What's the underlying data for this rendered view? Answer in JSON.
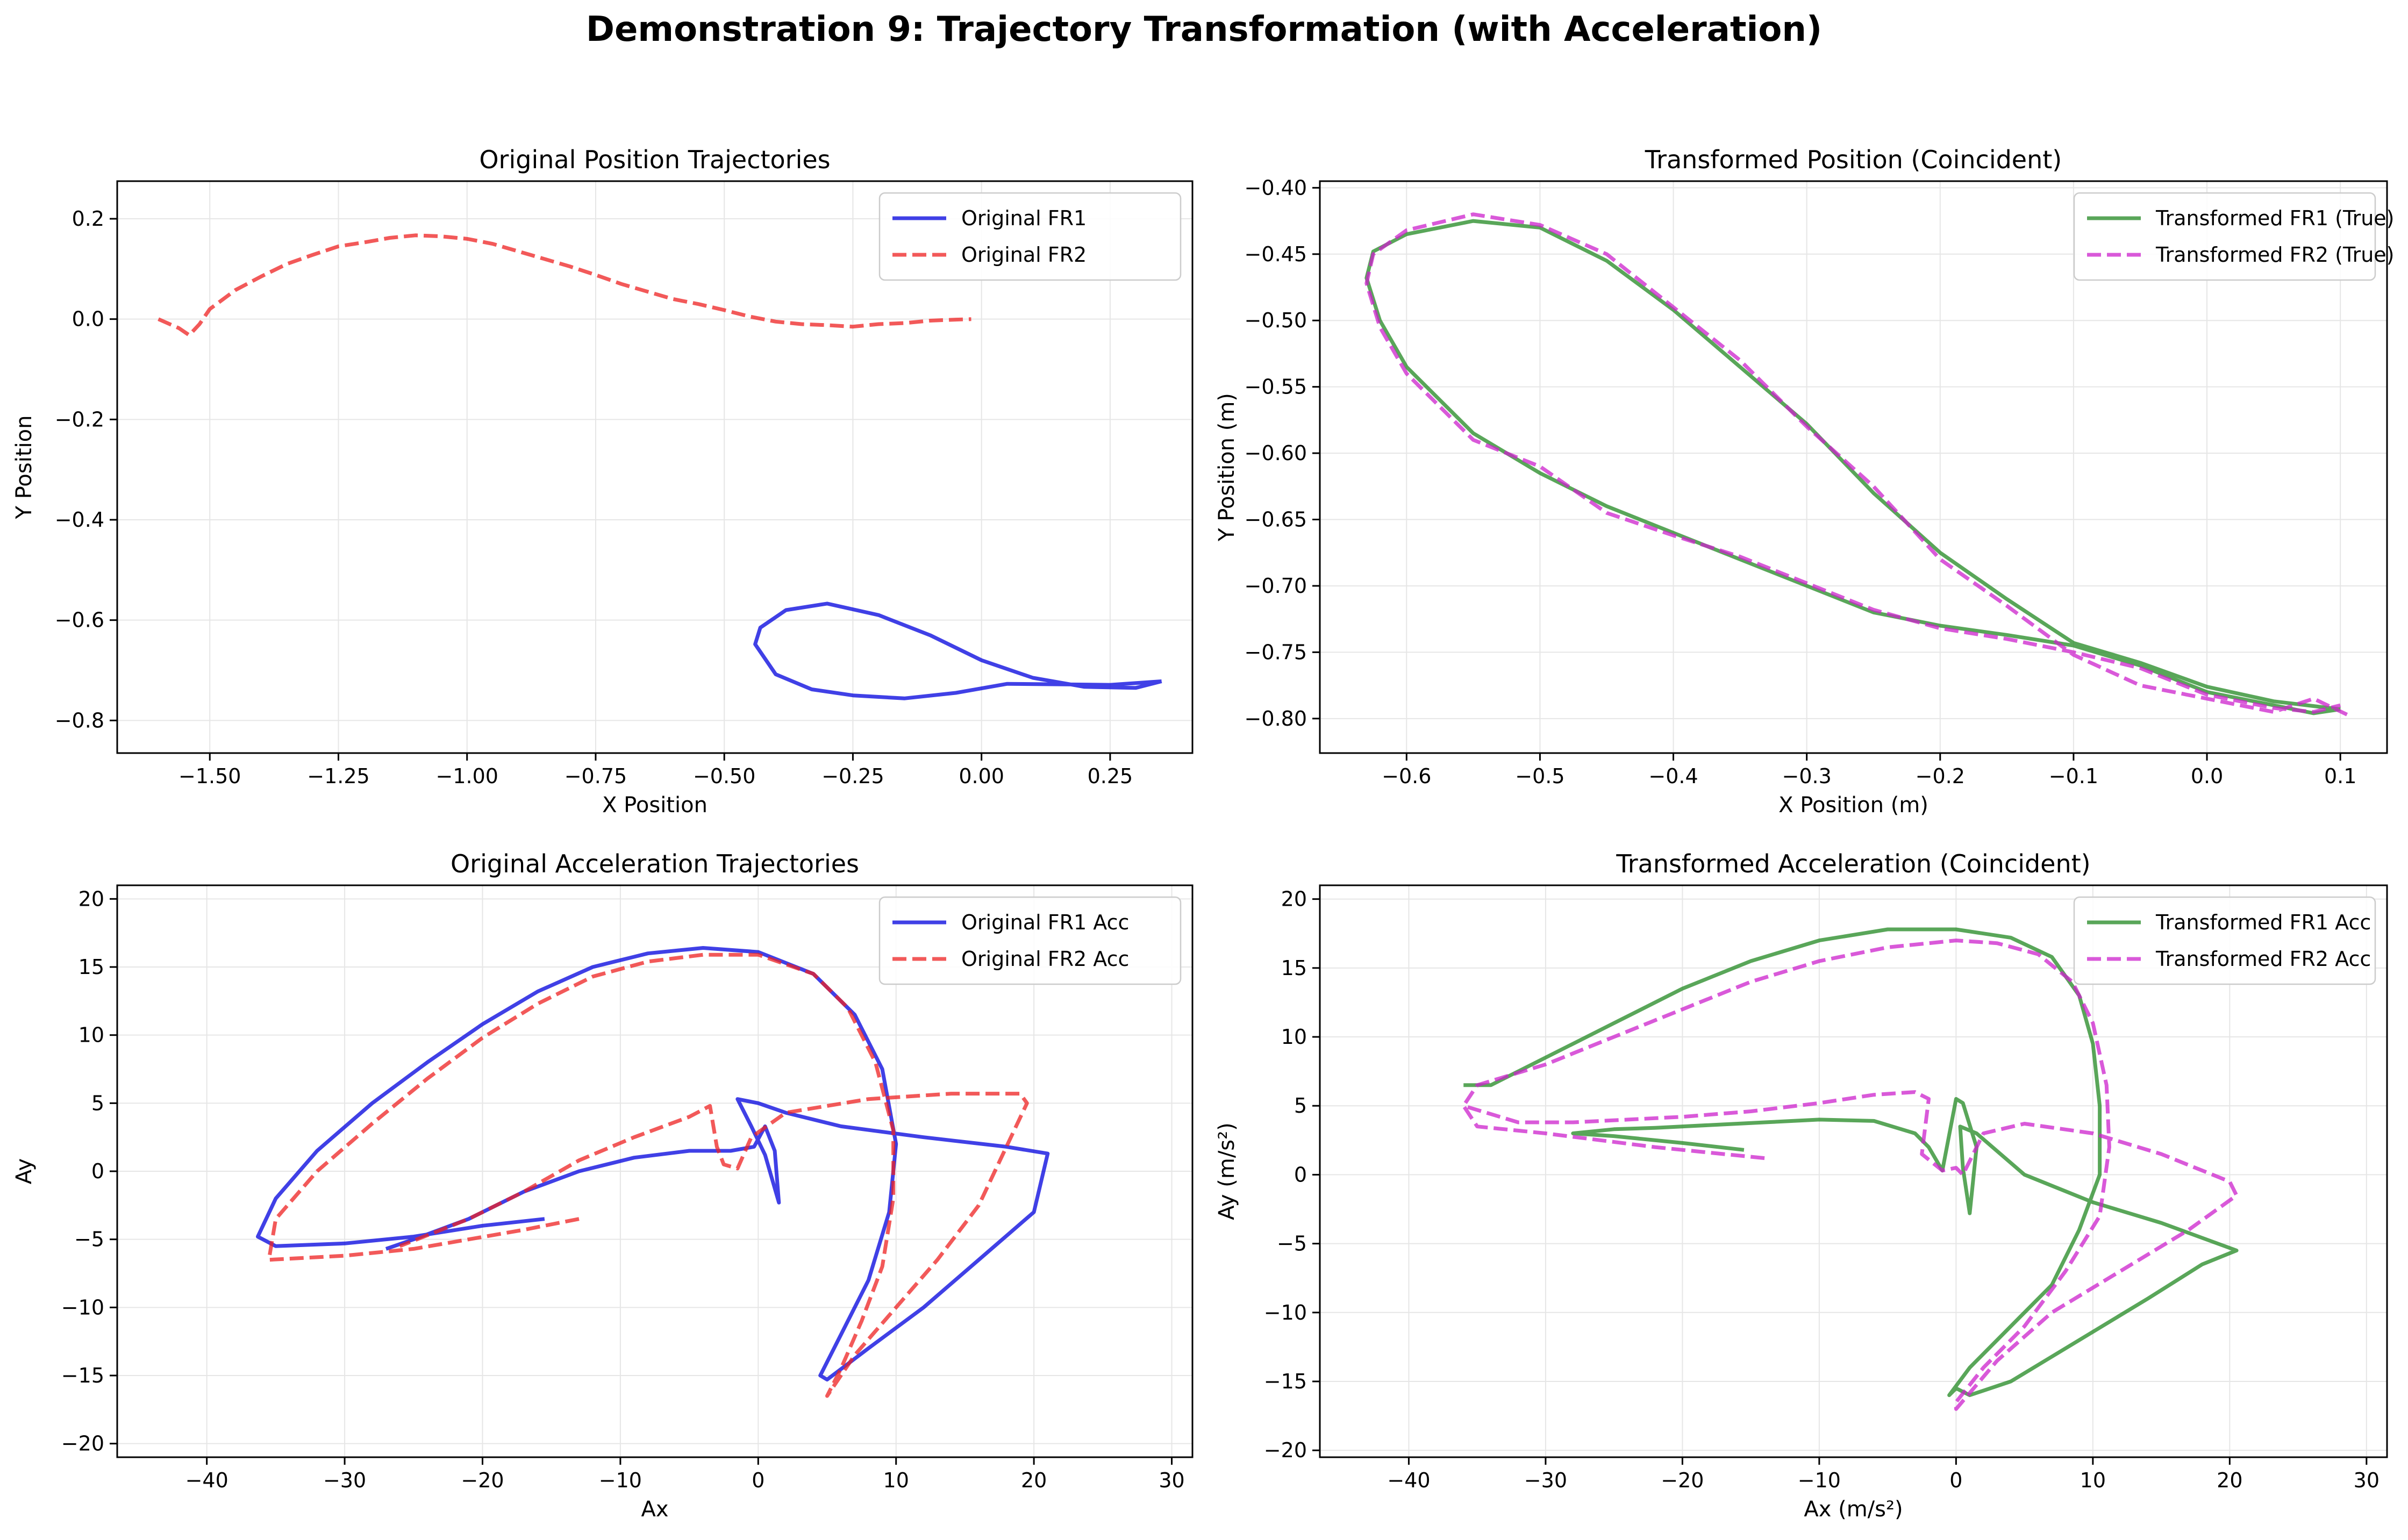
{
  "figure": {
    "title": "Demonstration 9: Trajectory Transformation (with Acceleration)"
  },
  "chart_data": [
    {
      "type": "line",
      "title": "Original Position Trajectories",
      "xlabel": "X Position",
      "ylabel": "Y Position",
      "xlim": [
        -1.68,
        0.41
      ],
      "ylim": [
        -0.865,
        0.275
      ],
      "xticks": [
        -1.5,
        -1.25,
        -1.0,
        -0.75,
        -0.5,
        -0.25,
        0.0,
        0.25
      ],
      "xticklabels": [
        "−1.50",
        "−1.25",
        "−1.00",
        "−0.75",
        "−0.50",
        "−0.25",
        "0.00",
        "0.25"
      ],
      "yticks": [
        0.2,
        0.0,
        -0.2,
        -0.4,
        -0.6,
        -0.8
      ],
      "yticklabels": [
        "0.2",
        "0.0",
        "−0.2",
        "−0.4",
        "−0.6",
        "−0.8"
      ],
      "grid": true,
      "legend": "top-right",
      "series": [
        {
          "name": "Original FR1",
          "color": "#0000dd",
          "dash": "solid",
          "x": [
            0.35,
            0.25,
            0.15,
            0.05,
            -0.05,
            -0.15,
            -0.25,
            -0.33,
            -0.4,
            -0.44,
            -0.43,
            -0.38,
            -0.3,
            -0.2,
            -0.1,
            0.0,
            0.1,
            0.2,
            0.3,
            0.35
          ],
          "y": [
            -0.722,
            -0.729,
            -0.728,
            -0.727,
            -0.745,
            -0.756,
            -0.75,
            -0.738,
            -0.708,
            -0.648,
            -0.615,
            -0.58,
            -0.567,
            -0.59,
            -0.63,
            -0.68,
            -0.715,
            -0.733,
            -0.735,
            -0.722
          ]
        },
        {
          "name": "Original FR2",
          "color": "#ee2222",
          "dash": "dashed",
          "x": [
            -1.6,
            -1.56,
            -1.54,
            -1.52,
            -1.5,
            -1.45,
            -1.4,
            -1.35,
            -1.3,
            -1.25,
            -1.2,
            -1.15,
            -1.1,
            -1.05,
            -1.0,
            -0.95,
            -0.9,
            -0.85,
            -0.8,
            -0.75,
            -0.7,
            -0.65,
            -0.6,
            -0.55,
            -0.5,
            -0.45,
            -0.4,
            -0.35,
            -0.3,
            -0.25,
            -0.2,
            -0.15,
            -0.1,
            -0.05,
            -0.02
          ],
          "y": [
            0.0,
            -0.018,
            -0.032,
            -0.01,
            0.02,
            0.058,
            0.085,
            0.11,
            0.128,
            0.145,
            0.153,
            0.162,
            0.167,
            0.165,
            0.16,
            0.15,
            0.135,
            0.12,
            0.105,
            0.088,
            0.07,
            0.055,
            0.04,
            0.03,
            0.018,
            0.005,
            -0.005,
            -0.01,
            -0.012,
            -0.015,
            -0.01,
            -0.008,
            -0.003,
            -0.001,
            0.0
          ]
        }
      ]
    },
    {
      "type": "line",
      "title": "Transformed Position (Coincident)",
      "xlabel": "X Position (m)",
      "ylabel": "Y Position (m)",
      "xlim": [
        -0.665,
        0.135
      ],
      "ylim": [
        -0.826,
        -0.395
      ],
      "xticks": [
        -0.6,
        -0.5,
        -0.4,
        -0.3,
        -0.2,
        -0.1,
        0.0,
        0.1
      ],
      "xticklabels": [
        "−0.6",
        "−0.5",
        "−0.4",
        "−0.3",
        "−0.2",
        "−0.1",
        "0.0",
        "0.1"
      ],
      "yticks": [
        -0.4,
        -0.45,
        -0.5,
        -0.55,
        -0.6,
        -0.65,
        -0.7,
        -0.75,
        -0.8
      ],
      "yticklabels": [
        "−0.40",
        "−0.45",
        "−0.50",
        "−0.55",
        "−0.60",
        "−0.65",
        "−0.70",
        "−0.75",
        "−0.80"
      ],
      "grid": true,
      "legend": "top-right",
      "series": [
        {
          "name": "Transformed FR1 (True)",
          "color": "#228822",
          "dash": "solid",
          "x": [
            0.1,
            0.05,
            0.0,
            -0.05,
            -0.1,
            -0.15,
            -0.2,
            -0.25,
            -0.3,
            -0.35,
            -0.4,
            -0.45,
            -0.5,
            -0.55,
            -0.6,
            -0.625,
            -0.63,
            -0.62,
            -0.6,
            -0.55,
            -0.5,
            -0.45,
            -0.4,
            -0.35,
            -0.3,
            -0.25,
            -0.2,
            -0.15,
            -0.1,
            -0.05,
            0.0,
            0.05,
            0.08,
            0.1
          ],
          "y": [
            -0.793,
            -0.787,
            -0.776,
            -0.758,
            -0.743,
            -0.71,
            -0.675,
            -0.63,
            -0.578,
            -0.535,
            -0.492,
            -0.455,
            -0.43,
            -0.425,
            -0.435,
            -0.448,
            -0.468,
            -0.5,
            -0.535,
            -0.585,
            -0.615,
            -0.64,
            -0.66,
            -0.68,
            -0.7,
            -0.72,
            -0.73,
            -0.737,
            -0.745,
            -0.76,
            -0.78,
            -0.79,
            -0.796,
            -0.793
          ]
        },
        {
          "name": "Transformed FR2 (True)",
          "color": "#cc22cc",
          "dash": "dashed",
          "x": [
            0.105,
            0.08,
            0.05,
            0.0,
            -0.05,
            -0.1,
            -0.15,
            -0.2,
            -0.25,
            -0.3,
            -0.35,
            -0.4,
            -0.45,
            -0.5,
            -0.55,
            -0.6,
            -0.625,
            -0.63,
            -0.62,
            -0.6,
            -0.55,
            -0.5,
            -0.45,
            -0.4,
            -0.35,
            -0.3,
            -0.25,
            -0.2,
            -0.15,
            -0.1,
            -0.05,
            0.0,
            0.05,
            0.08,
            0.1
          ],
          "y": [
            -0.797,
            -0.785,
            -0.795,
            -0.785,
            -0.775,
            -0.752,
            -0.715,
            -0.68,
            -0.625,
            -0.58,
            -0.53,
            -0.49,
            -0.45,
            -0.428,
            -0.42,
            -0.432,
            -0.45,
            -0.472,
            -0.505,
            -0.54,
            -0.59,
            -0.61,
            -0.645,
            -0.662,
            -0.678,
            -0.698,
            -0.718,
            -0.732,
            -0.74,
            -0.75,
            -0.762,
            -0.782,
            -0.792,
            -0.795,
            -0.79
          ]
        }
      ]
    },
    {
      "type": "line",
      "title": "Original Acceleration Trajectories",
      "xlabel": "Ax",
      "ylabel": "Ay",
      "xlim": [
        -46.5,
        31.5
      ],
      "ylim": [
        -21,
        21
      ],
      "xticks": [
        -40,
        -30,
        -20,
        -10,
        0,
        10,
        20,
        30
      ],
      "xticklabels": [
        "−40",
        "−30",
        "−20",
        "−10",
        "0",
        "10",
        "20",
        "30"
      ],
      "yticks": [
        20,
        15,
        10,
        5,
        0,
        -5,
        -10,
        -15,
        -20
      ],
      "yticklabels": [
        "20",
        "15",
        "10",
        "5",
        "0",
        "−5",
        "−10",
        "−15",
        "−20"
      ],
      "grid": true,
      "legend": "top-right",
      "series": [
        {
          "name": "Original FR1 Acc",
          "color": "#0000dd",
          "dash": "solid",
          "x": [
            -15.5,
            -20,
            -25,
            -30,
            -35,
            -36.3,
            -35,
            -32,
            -28,
            -24,
            -20,
            -16,
            -12,
            -8,
            -4,
            0,
            4,
            7,
            9,
            10,
            9.5,
            8,
            6,
            4.5,
            5,
            8,
            12,
            16,
            20,
            21,
            18,
            12,
            6,
            2,
            0,
            -1.5,
            -0.5,
            0.5,
            1.5,
            1.2,
            0.5,
            -0.3,
            -2,
            -5,
            -9,
            -13,
            -17,
            -21,
            -25,
            -27
          ],
          "y": [
            -3.5,
            -4,
            -4.8,
            -5.3,
            -5.5,
            -4.8,
            -2,
            1.5,
            5,
            8,
            10.8,
            13.2,
            15,
            16,
            16.4,
            16.1,
            14.5,
            11.5,
            7.5,
            2,
            -3,
            -8,
            -12,
            -15,
            -15.3,
            -13,
            -10,
            -6.5,
            -3,
            1.3,
            1.8,
            2.5,
            3.3,
            4.3,
            5.0,
            5.3,
            3.3,
            1.2,
            -2.3,
            1.5,
            3.3,
            1.8,
            1.5,
            1.5,
            1.0,
            0,
            -1.5,
            -3.5,
            -5,
            -5.7
          ]
        },
        {
          "name": "Original FR2 Acc",
          "color": "#ee2222",
          "dash": "dashed",
          "x": [
            -13,
            -17,
            -21,
            -25,
            -30,
            -35.5,
            -35,
            -32,
            -28,
            -24,
            -20,
            -16,
            -12,
            -8,
            -4,
            0,
            4,
            6.5,
            8.5,
            9.8,
            9.8,
            9,
            7.5,
            6,
            5,
            7,
            10,
            13,
            16,
            19.5,
            19,
            14,
            8,
            2,
            -0.5,
            -1.5,
            -2.5,
            -3,
            -3.5,
            -5,
            -9,
            -13,
            -17,
            -21,
            -26
          ],
          "y": [
            -3.5,
            -4.3,
            -5,
            -5.7,
            -6.2,
            -6.5,
            -3.5,
            0,
            3.5,
            6.8,
            9.8,
            12.3,
            14.3,
            15.4,
            15.9,
            15.9,
            14.5,
            12,
            8,
            3,
            -2,
            -7,
            -11,
            -14.5,
            -16.5,
            -13.5,
            -10,
            -6.5,
            -2.5,
            5,
            5.7,
            5.7,
            5.3,
            4.3,
            2.5,
            0.2,
            0.5,
            1.8,
            4.8,
            4.0,
            2.5,
            0.8,
            -1.5,
            -3.5,
            -5.5
          ]
        }
      ]
    },
    {
      "type": "line",
      "title": "Transformed Acceleration (Coincident)",
      "xlabel": "Ax (m/s²)",
      "ylabel": "Ay (m/s²)",
      "xlim": [
        -46.5,
        31.5
      ],
      "ylim": [
        -20.5,
        21
      ],
      "xticks": [
        -40,
        -30,
        -20,
        -10,
        0,
        10,
        20,
        30
      ],
      "xticklabels": [
        "−40",
        "−30",
        "−20",
        "−10",
        "0",
        "10",
        "20",
        "30"
      ],
      "yticks": [
        20,
        15,
        10,
        5,
        0,
        -5,
        -10,
        -15,
        -20
      ],
      "yticklabels": [
        "20",
        "15",
        "10",
        "5",
        "0",
        "−5",
        "−10",
        "−15",
        "−20"
      ],
      "grid": true,
      "legend": "top-right",
      "series": [
        {
          "name": "Transformed FR1 Acc",
          "color": "#228822",
          "dash": "solid",
          "x": [
            -15.5,
            -20,
            -25,
            -28,
            -25,
            -22,
            -18,
            -14,
            -10,
            -6,
            -3,
            -2,
            -1,
            0,
            0.5,
            1.5,
            1.0,
            0.5,
            0.3,
            1.5,
            5,
            10,
            15,
            20.5,
            18,
            14,
            9,
            4,
            1,
            0,
            -0.5,
            1,
            4,
            7,
            9,
            10.5,
            10.5,
            10,
            9,
            7,
            4,
            0,
            -5,
            -10,
            -15,
            -20,
            -25,
            -30,
            -34,
            -36
          ],
          "y": [
            1.8,
            2.3,
            2.8,
            3.0,
            3.3,
            3.4,
            3.6,
            3.8,
            4.0,
            3.9,
            3.0,
            2.0,
            0.3,
            5.5,
            5.2,
            2.0,
            -2.8,
            0.5,
            3.5,
            3.0,
            0,
            -2,
            -3.5,
            -5.5,
            -6.5,
            -9,
            -12,
            -15,
            -16,
            -15.5,
            -16,
            -14,
            -11,
            -8,
            -4,
            0,
            5,
            9.5,
            13,
            15.8,
            17.2,
            17.8,
            17.8,
            17.0,
            15.5,
            13.5,
            11.0,
            8.5,
            6.5,
            6.5
          ]
        },
        {
          "name": "Transformed FR2 Acc",
          "color": "#cc22cc",
          "dash": "dashed",
          "x": [
            -14,
            -18,
            -22,
            -26,
            -30,
            -35,
            -36,
            -32,
            -28,
            -24,
            -20,
            -15,
            -10,
            -6,
            -3,
            -2,
            -2.5,
            -1,
            0,
            0.5,
            2,
            5,
            10,
            15,
            20,
            20.5,
            17,
            12,
            7,
            3,
            0,
            0,
            2,
            5,
            8,
            10.5,
            11.2,
            11,
            10,
            8.5,
            6,
            3,
            0,
            -5,
            -10,
            -15,
            -20,
            -25,
            -30,
            -35,
            -36
          ],
          "y": [
            1.2,
            1.6,
            2.0,
            2.5,
            3.0,
            3.5,
            5,
            3.8,
            3.8,
            4.0,
            4.2,
            4.6,
            5.2,
            5.8,
            6.0,
            5.5,
            1.5,
            0.3,
            0.5,
            0,
            3.0,
            3.7,
            3.0,
            1.5,
            -0.5,
            -1.5,
            -4,
            -7,
            -10,
            -13.5,
            -17,
            -16.5,
            -14,
            -11,
            -7,
            -3,
            2,
            6.5,
            11,
            14,
            16,
            16.8,
            17,
            16.5,
            15.5,
            14.0,
            12.0,
            10.0,
            8.0,
            6.5,
            5.0
          ]
        }
      ]
    }
  ]
}
